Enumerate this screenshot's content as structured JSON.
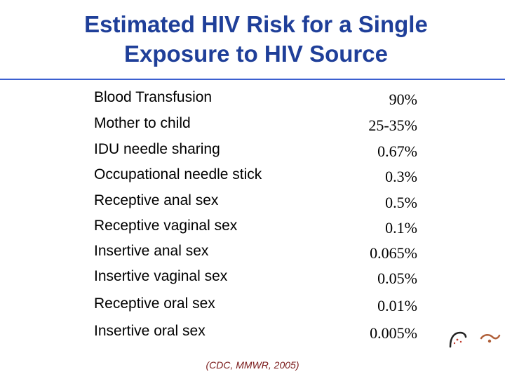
{
  "slide": {
    "title_line1": "Estimated HIV Risk for a Single",
    "title_line2": "Exposure to HIV Source",
    "citation": "(CDC, MMWR, 2005)"
  },
  "colors": {
    "title": "#1f3f99",
    "rule": "#3b5fd0",
    "citation": "#7a1a1a"
  },
  "risk_table": {
    "rows": [
      {
        "label": "Blood Transfusion",
        "value": "90%"
      },
      {
        "label": "Mother to child",
        "value": "25-35%"
      },
      {
        "label": "IDU needle sharing",
        "value": "0.67%"
      },
      {
        "label": "Occupational needle stick",
        "value": "0.3%"
      },
      {
        "label": "Receptive anal sex",
        "value": "0.5%"
      },
      {
        "label": "Receptive vaginal sex",
        "value": "0.1%"
      },
      {
        "label": "Insertive anal sex",
        "value": "0.065%"
      },
      {
        "label": "Insertive vaginal sex",
        "value": "0.05%"
      },
      {
        "label": "Receptive oral sex",
        "value": "0.01%"
      },
      {
        "label": "Insertive oral sex",
        "value": "0.005%"
      }
    ]
  }
}
